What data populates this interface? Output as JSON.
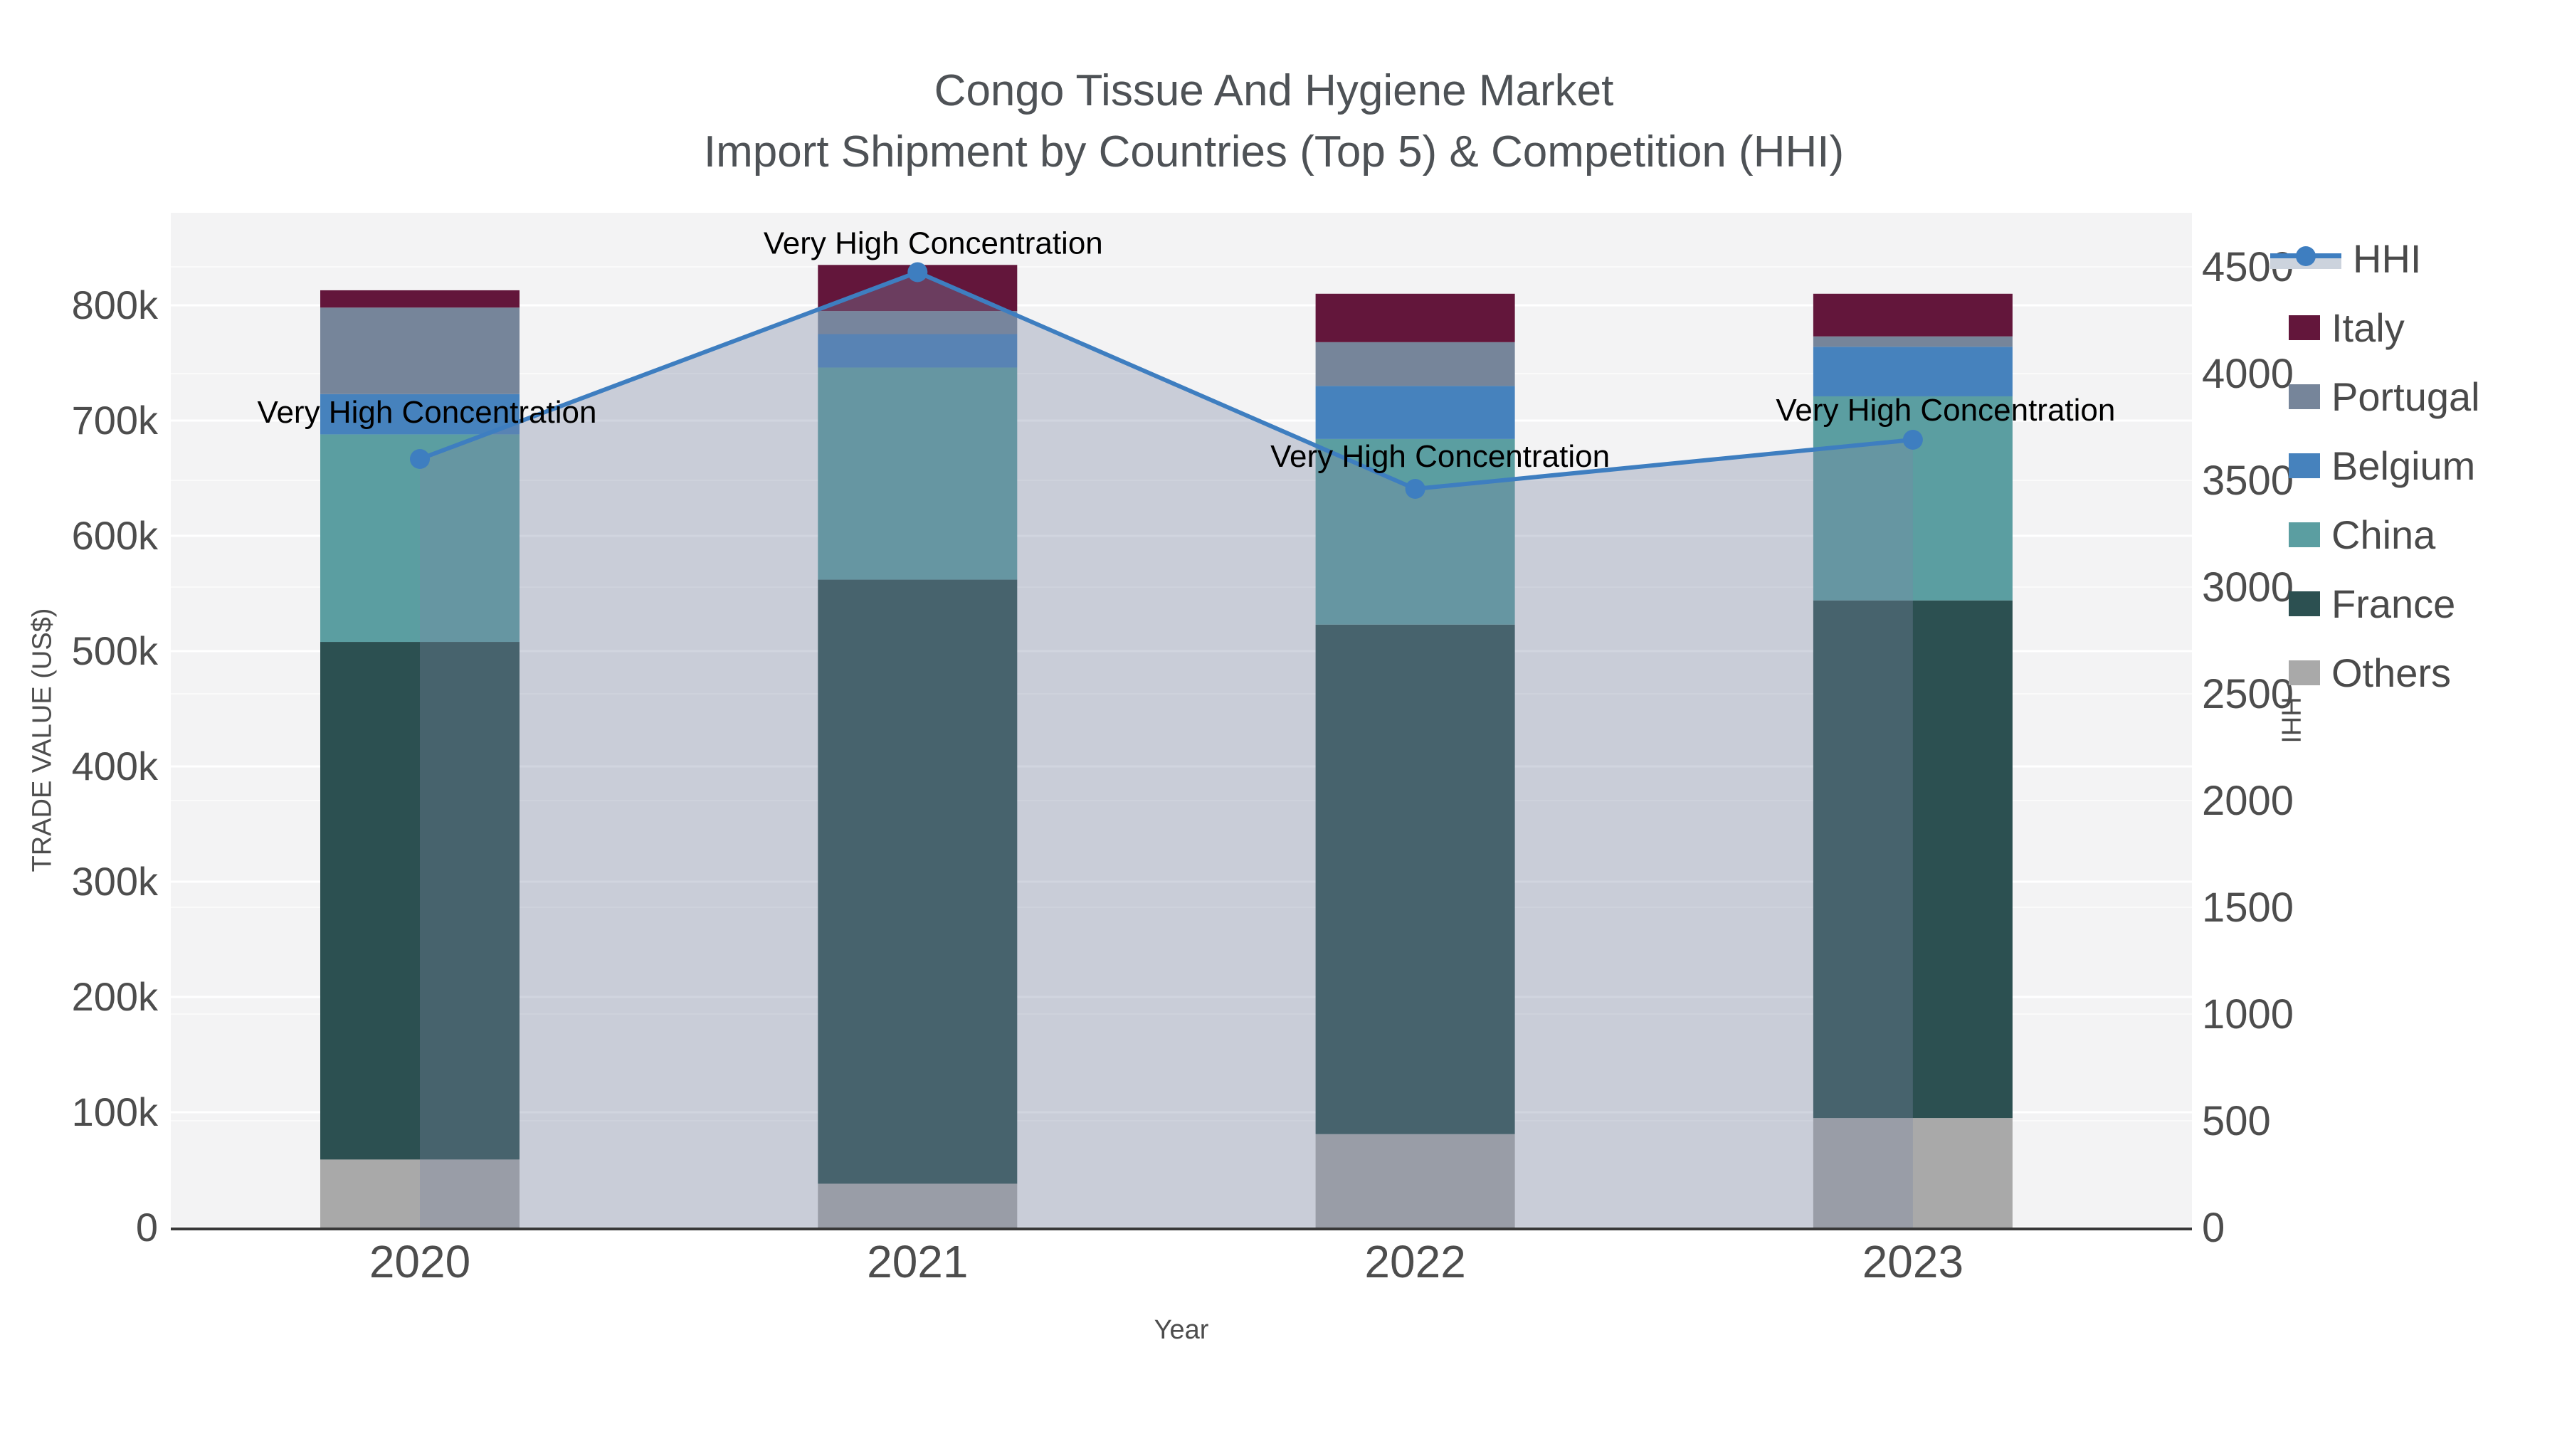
{
  "title": "Congo Tissue And Hygiene Market",
  "subtitle": "Import Shipment by Countries (Top 5) & Competition (HHI)",
  "axes": {
    "x_title": "Year",
    "y_left_title": "TRADE VALUE (US$)",
    "y_right_title": "HHI",
    "y_left_tick_labels": [
      "0",
      "100k",
      "200k",
      "300k",
      "400k",
      "500k",
      "600k",
      "700k",
      "800k"
    ],
    "y_right_tick_labels": [
      "0",
      "500",
      "1000",
      "1500",
      "2000",
      "2500",
      "3000",
      "3500",
      "4000",
      "4500"
    ]
  },
  "colors": {
    "plot_bg": "#f3f3f4",
    "gridline": "#ffffff",
    "axis_line": "#383838",
    "tick_text": "#4d4d4d",
    "title_text": "#4e5256",
    "annotation_text": "#000000",
    "hhi_line": "#3e7ec0",
    "hhi_fill": "rgba(122,136,164,0.35)"
  },
  "chart_data": {
    "type": "bar",
    "subtype": "stacked-bar-with-line",
    "categories": [
      "2020",
      "2021",
      "2022",
      "2023"
    ],
    "xlabel": "Year",
    "ylabel_left": "TRADE VALUE (US$)",
    "ylabel_right": "HHI",
    "ylim_left": [
      0,
      880000
    ],
    "ylim_right": [
      0,
      4500
    ],
    "grid": true,
    "legend_position": "right",
    "series": [
      {
        "name": "Others",
        "color": "#a9a9a9",
        "values": [
          59000,
          38000,
          81000,
          95000
        ]
      },
      {
        "name": "France",
        "color": "#2c5051",
        "values": [
          449000,
          524000,
          442000,
          449000
        ]
      },
      {
        "name": "China",
        "color": "#5b9ea1",
        "values": [
          180000,
          184000,
          161000,
          177000
        ]
      },
      {
        "name": "Belgium",
        "color": "#4682bd",
        "values": [
          35000,
          29000,
          46000,
          43000
        ]
      },
      {
        "name": "Portugal",
        "color": "#76859a",
        "values": [
          75000,
          20000,
          38000,
          9000
        ]
      },
      {
        "name": "Italy",
        "color": "#63163b",
        "values": [
          15000,
          40000,
          42000,
          37000
        ]
      }
    ],
    "line_series": {
      "name": "HHI",
      "color": "#3e7ec0",
      "fill": "tozeroy",
      "values": [
        3600,
        4475,
        3460,
        3690
      ]
    },
    "annotations": [
      {
        "category": "2020",
        "text": "Very High Concentration"
      },
      {
        "category": "2021",
        "text": "Very High Concentration"
      },
      {
        "category": "2022",
        "text": "Very High Concentration"
      },
      {
        "category": "2023",
        "text": "Very High Concentration"
      }
    ],
    "legend_order": [
      "HHI",
      "Italy",
      "Portugal",
      "Belgium",
      "China",
      "France",
      "Others"
    ]
  }
}
